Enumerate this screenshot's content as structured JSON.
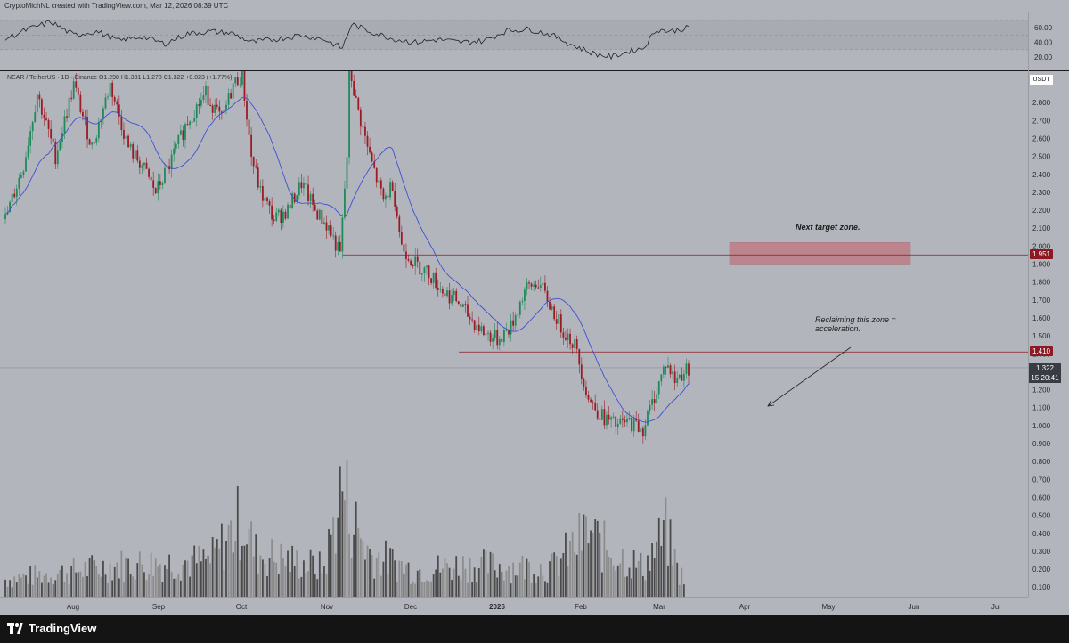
{
  "header": {
    "attribution": "CryptoMichNL created with TradingView.com, Mar 12, 2026 08:39 UTC"
  },
  "legend": {
    "text": "NEAR / TetherUS · 1D · Binance  O1.298 H1.331 L1.278 C1.322 +0.023 (+1.77%)"
  },
  "currency": "USDT",
  "annotations": {
    "target": "Next target zone.",
    "reclaim_line1": "Reclaiming this zone =",
    "reclaim_line2": "acceleration."
  },
  "tags": {
    "resistance_high": "1.951",
    "resistance_low": "1.410",
    "last_price": "1.322",
    "countdown": "15:20:41"
  },
  "footer": {
    "brand": "TradingView"
  },
  "colors": {
    "up": "#1e8a5a",
    "down": "#9b1b25",
    "ma": "#3d4fd6",
    "zone": "#c07079",
    "level": "#8b1a22",
    "rsi": "#222222",
    "volume_up": "#4a4a4a",
    "volume_down": "#8c8c8c"
  },
  "chart_data": {
    "type": "candlestick",
    "price_axis": {
      "ticks": [
        2.8,
        2.7,
        2.6,
        2.5,
        2.4,
        2.3,
        2.2,
        2.1,
        2.0,
        1.9,
        1.8,
        1.7,
        1.6,
        1.5,
        1.4,
        1.3,
        1.2,
        1.1,
        1.0,
        0.9,
        0.8,
        0.7,
        0.6,
        0.5,
        0.4,
        0.3,
        0.2,
        0.1
      ],
      "labels": [
        "2.800",
        "2.700",
        "2.600",
        "2.500",
        "2.400",
        "2.300",
        "2.200",
        "2.100",
        "2.000",
        "1.900",
        "1.800",
        "1.700",
        "1.600",
        "1.500",
        "1.400",
        "1.300",
        "1.200",
        "1.100",
        "1.000",
        "0.900",
        "0.800",
        "0.700",
        "0.600",
        "0.500",
        "0.400",
        "0.300",
        "0.200",
        "0.100"
      ]
    },
    "rsi_axis": {
      "ticks": [
        60,
        40,
        20
      ],
      "labels": [
        "60.00",
        "40.00",
        "20.00"
      ]
    },
    "time_axis": [
      "Aug",
      "Sep",
      "Oct",
      "Nov",
      "Dec",
      "2026",
      "Feb",
      "Mar",
      "Apr",
      "May",
      "Jun",
      "Jul"
    ],
    "levels": [
      1.951,
      1.41
    ],
    "target_zone": {
      "low": 1.9,
      "high": 2.02
    },
    "last_price": 1.322,
    "anchors": [
      [
        0,
        2.15
      ],
      [
        8,
        2.45
      ],
      [
        14,
        2.85
      ],
      [
        22,
        2.5
      ],
      [
        30,
        2.9
      ],
      [
        38,
        2.55
      ],
      [
        46,
        2.9
      ],
      [
        54,
        2.55
      ],
      [
        60,
        2.45
      ],
      [
        66,
        2.3
      ],
      [
        72,
        2.45
      ],
      [
        80,
        2.7
      ],
      [
        88,
        2.85
      ],
      [
        95,
        2.7
      ],
      [
        100,
        2.9
      ],
      [
        104,
        2.95
      ],
      [
        108,
        2.5
      ],
      [
        112,
        2.3
      ],
      [
        118,
        2.15
      ],
      [
        124,
        2.2
      ],
      [
        130,
        2.35
      ],
      [
        136,
        2.2
      ],
      [
        142,
        2.1
      ],
      [
        147,
        1.95
      ],
      [
        150,
        2.5
      ],
      [
        151,
        3.0
      ],
      [
        154,
        2.8
      ],
      [
        160,
        2.5
      ],
      [
        166,
        2.25
      ],
      [
        170,
        2.35
      ],
      [
        174,
        2.0
      ],
      [
        180,
        1.9
      ],
      [
        186,
        1.85
      ],
      [
        192,
        1.75
      ],
      [
        198,
        1.7
      ],
      [
        204,
        1.6
      ],
      [
        210,
        1.52
      ],
      [
        216,
        1.48
      ],
      [
        222,
        1.55
      ],
      [
        228,
        1.75
      ],
      [
        234,
        1.8
      ],
      [
        238,
        1.7
      ],
      [
        244,
        1.55
      ],
      [
        250,
        1.45
      ],
      [
        256,
        1.15
      ],
      [
        262,
        1.05
      ],
      [
        268,
        1.0
      ],
      [
        274,
        1.02
      ],
      [
        280,
        0.98
      ],
      [
        286,
        1.2
      ],
      [
        290,
        1.35
      ],
      [
        294,
        1.25
      ],
      [
        298,
        1.3
      ],
      [
        300,
        1.322
      ]
    ],
    "rsi_anchors": [
      [
        0,
        45
      ],
      [
        10,
        58
      ],
      [
        20,
        68
      ],
      [
        30,
        50
      ],
      [
        40,
        55
      ],
      [
        50,
        42
      ],
      [
        60,
        48
      ],
      [
        70,
        38
      ],
      [
        80,
        52
      ],
      [
        90,
        55
      ],
      [
        100,
        52
      ],
      [
        108,
        40
      ],
      [
        120,
        45
      ],
      [
        130,
        50
      ],
      [
        140,
        44
      ],
      [
        148,
        32
      ],
      [
        152,
        65
      ],
      [
        160,
        55
      ],
      [
        170,
        45
      ],
      [
        180,
        40
      ],
      [
        190,
        44
      ],
      [
        200,
        40
      ],
      [
        210,
        42
      ],
      [
        220,
        56
      ],
      [
        230,
        58
      ],
      [
        240,
        50
      ],
      [
        250,
        35
      ],
      [
        258,
        25
      ],
      [
        266,
        20
      ],
      [
        274,
        28
      ],
      [
        280,
        32
      ],
      [
        286,
        58
      ],
      [
        292,
        55
      ],
      [
        300,
        60
      ]
    ],
    "volume_anchors": [
      [
        0,
        0.12
      ],
      [
        50,
        0.22
      ],
      [
        90,
        0.25
      ],
      [
        104,
        0.55
      ],
      [
        110,
        0.3
      ],
      [
        140,
        0.2
      ],
      [
        148,
        0.78
      ],
      [
        152,
        0.55
      ],
      [
        160,
        0.3
      ],
      [
        180,
        0.18
      ],
      [
        200,
        0.22
      ],
      [
        240,
        0.2
      ],
      [
        256,
        0.45
      ],
      [
        262,
        0.35
      ],
      [
        280,
        0.2
      ],
      [
        290,
        0.45
      ],
      [
        296,
        0.15
      ]
    ]
  }
}
